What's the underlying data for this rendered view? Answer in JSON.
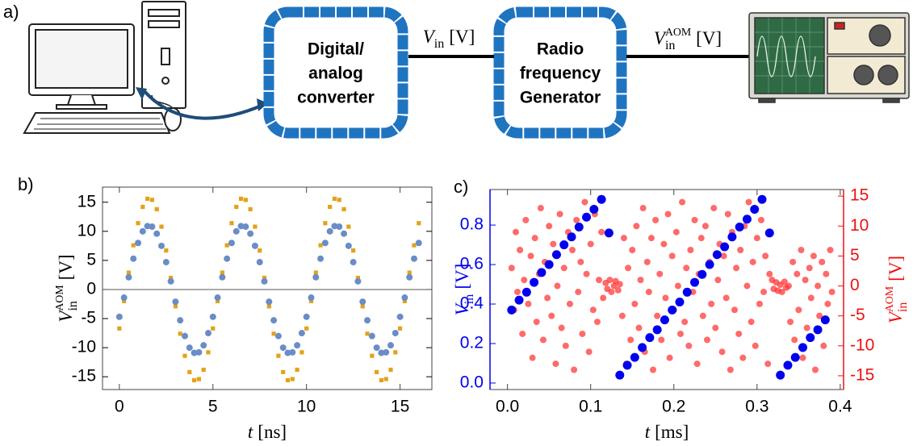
{
  "diagram": {
    "panel": "a)",
    "boxes": [
      [
        "Digital/",
        "analog",
        "converter"
      ],
      [
        "Radio",
        "frequency",
        "Generator"
      ]
    ],
    "arrow_labels": [
      {
        "symbol": "V",
        "sub": "in",
        "unit": "[V]"
      },
      {
        "symbol": "V",
        "sub": "in",
        "sup": "AOM",
        "unit": "[V]"
      }
    ]
  },
  "chart_data": [
    {
      "type": "scatter",
      "panel": "b)",
      "xlabel": {
        "symbol": "t",
        "unit": "[ns]"
      },
      "ylabel": {
        "symbol": "V",
        "sub": "in",
        "sup": "AOM",
        "unit": "[V]"
      },
      "xlim": [
        -0.9,
        16.7
      ],
      "xticks": [
        0,
        5,
        10,
        15
      ],
      "ylim": [
        -17.2,
        17.6
      ],
      "yticks": [
        -15,
        -10,
        -5,
        0,
        5,
        10,
        15
      ],
      "zero_line": true,
      "x": [
        0,
        0.25,
        0.5,
        0.75,
        1,
        1.25,
        1.5,
        1.75,
        2,
        2.25,
        2.5,
        2.75,
        3,
        3.25,
        3.5,
        3.75,
        4,
        4.25,
        4.5,
        4.75,
        5,
        5.25,
        5.5,
        5.75,
        6,
        6.25,
        6.5,
        6.75,
        7,
        7.25,
        7.5,
        7.75,
        8,
        8.25,
        8.5,
        8.75,
        9,
        9.25,
        9.5,
        9.75,
        10,
        10.25,
        10.5,
        10.75,
        11,
        11.25,
        11.5,
        11.75,
        12,
        12.25,
        12.5,
        12.75,
        13,
        13.25,
        13.5,
        13.75,
        14,
        14.25,
        14.5,
        14.75,
        15,
        15.25,
        15.5,
        15.75,
        16
      ],
      "series": [
        {
          "color": "#e3a21a",
          "marker": "square",
          "values": [
            -6.7,
            -2,
            2.9,
            7.6,
            11.4,
            14.2,
            15.6,
            15.4,
            13.8,
            10.8,
            6.7,
            2,
            -2.9,
            -7.6,
            -11.4,
            -14.2,
            -15.6,
            -15.4,
            -13.8,
            -10.8,
            -6.7,
            -2,
            2.9,
            7.6,
            11.4,
            14.2,
            15.6,
            15.4,
            13.8,
            10.8,
            6.7,
            2,
            -2.9,
            -7.6,
            -11.4,
            -14.2,
            -15.6,
            -15.4,
            -13.8,
            -10.8,
            -6.7,
            -2,
            2.9,
            7.6,
            11.4,
            14.2,
            15.6,
            15.4,
            13.8,
            10.8,
            6.7,
            2,
            -2.9,
            -7.6,
            -11.4,
            -14.2,
            -15.6,
            -15.4,
            -13.8,
            -10.8,
            -6.7,
            -2,
            2.9,
            7.6,
            11.4
          ]
        },
        {
          "color": "#6a8cc7",
          "marker": "circle",
          "values": [
            -4.7,
            -1.4,
            2.1,
            5.3,
            8,
            10,
            10.9,
            10.8,
            9.6,
            7.5,
            4.7,
            1.4,
            -2.1,
            -5.3,
            -8,
            -10,
            -10.9,
            -10.8,
            -9.6,
            -7.5,
            -4.7,
            -1.4,
            2.1,
            5.3,
            8,
            10,
            10.9,
            10.8,
            9.6,
            7.5,
            4.7,
            1.4,
            -2.1,
            -5.3,
            -8,
            -10,
            -10.9,
            -10.8,
            -9.6,
            -7.5,
            -4.7,
            -1.4,
            2.1,
            5.3,
            8,
            10,
            10.9,
            10.8,
            9.6,
            7.5,
            4.7,
            1.4,
            -2.1,
            -5.3,
            -8,
            -10,
            -10.9,
            -10.8,
            -9.6,
            -7.5,
            -4.7,
            -1.4,
            2.1,
            5.3,
            8
          ]
        }
      ]
    },
    {
      "type": "scatter",
      "panel": "c)",
      "xlabel": {
        "symbol": "t",
        "unit": "[ms]"
      },
      "ylabel": {
        "symbol": "V",
        "sub": "in",
        "unit": "[V]"
      },
      "y2label": {
        "symbol": "V",
        "sub": "in",
        "sup": "AOM",
        "unit": "[V]"
      },
      "axis_colors": {
        "y": "#0000ee",
        "y2": "#ee1111"
      },
      "xlim": [
        -0.021,
        0.404
      ],
      "xticks": [
        {
          "value": 0,
          "label": "0.0"
        },
        0.1,
        0.2,
        0.3,
        0.4
      ],
      "ylim": [
        -0.033,
        0.98
      ],
      "yticks": [
        {
          "value": 0,
          "label": "0.0"
        },
        0.2,
        0.4,
        0.6,
        0.8
      ],
      "y2lim": [
        -17.3,
        16.1
      ],
      "y2ticks": [
        -15,
        -10,
        -5,
        0,
        5,
        10,
        15
      ],
      "series": [
        {
          "color": "#ff3030",
          "marker": "circle",
          "axis": "y2",
          "opacity": 0.72,
          "x": [
            0.005,
            0.008,
            0.01,
            0.012,
            0.015,
            0.018,
            0.02,
            0.022,
            0.025,
            0.028,
            0.03,
            0.033,
            0.035,
            0.038,
            0.04,
            0.043,
            0.045,
            0.048,
            0.05,
            0.053,
            0.055,
            0.058,
            0.06,
            0.063,
            0.065,
            0.068,
            0.07,
            0.073,
            0.075,
            0.078,
            0.08,
            0.083,
            0.085,
            0.088,
            0.09,
            0.093,
            0.095,
            0.098,
            0.1,
            0.103,
            0.105,
            0.108,
            0.11,
            0.113,
            0.115,
            0.118,
            0.12,
            0.123,
            0.125,
            0.128,
            0.13,
            0.133,
            0.135,
            0.138,
            0.14,
            0.143,
            0.145,
            0.148,
            0.15,
            0.153,
            0.155,
            0.158,
            0.16,
            0.163,
            0.165,
            0.168,
            0.17,
            0.173,
            0.175,
            0.178,
            0.18,
            0.183,
            0.185,
            0.188,
            0.19,
            0.193,
            0.195,
            0.198,
            0.2,
            0.203,
            0.205,
            0.208,
            0.21,
            0.213,
            0.215,
            0.218,
            0.22,
            0.223,
            0.225,
            0.228,
            0.23,
            0.233,
            0.235,
            0.238,
            0.24,
            0.243,
            0.245,
            0.248,
            0.25,
            0.253,
            0.255,
            0.258,
            0.26,
            0.263,
            0.265,
            0.268,
            0.27,
            0.273,
            0.275,
            0.278,
            0.28,
            0.283,
            0.285,
            0.288,
            0.29,
            0.293,
            0.295,
            0.298,
            0.3,
            0.303,
            0.305,
            0.308,
            0.31,
            0.313,
            0.315,
            0.318,
            0.32,
            0.323,
            0.325,
            0.328,
            0.33,
            0.333,
            0.335,
            0.338,
            0.34,
            0.343,
            0.345,
            0.348,
            0.35,
            0.353,
            0.355,
            0.358,
            0.36,
            0.363,
            0.365,
            0.368,
            0.37,
            0.373,
            0.375,
            0.378,
            0.38,
            0.383,
            0.385,
            0.388,
            0.39
          ],
          "values": [
            3,
            -4,
            9,
            -1,
            6,
            -8,
            1,
            11,
            -3,
            5,
            -12,
            8,
            -6,
            2,
            13,
            -9,
            4,
            -2,
            10,
            -5,
            7,
            -13,
            0,
            12,
            -7,
            3,
            -10,
            9,
            -3,
            6,
            -14,
            11,
            -1,
            4,
            -8,
            14,
            2,
            -11,
            7,
            -4,
            12,
            -6,
            1,
            9,
            -2,
            0.5,
            -0.5,
            1,
            -1,
            0,
            0.8,
            -0.7,
            0.3,
            -5,
            8,
            -13,
            3,
            -9,
            6,
            -3,
            10,
            -7,
            1,
            13,
            -11,
            4,
            -1,
            8,
            -14,
            11,
            -5,
            2,
            -9,
            7,
            -2,
            12,
            -12,
            5,
            -4,
            9,
            0,
            -8,
            14,
            -6,
            3,
            -10,
            6,
            -1,
            11,
            -13,
            2,
            8,
            -5,
            10,
            -9,
            4,
            -3,
            13,
            -7,
            1,
            7,
            -11,
            5,
            -2,
            12,
            -14,
            9,
            -4,
            3,
            -8,
            6,
            -12,
            10,
            0,
            14,
            -6,
            4,
            -10,
            8,
            -3,
            11,
            -1,
            5,
            -13,
            2,
            1,
            -0.5,
            0.6,
            -0.8,
            0.2,
            -1,
            0.7,
            -0.3,
            0,
            -6,
            4,
            -9,
            2,
            -4,
            6,
            -12,
            1,
            -7,
            3,
            -2,
            5,
            -14,
            0,
            -5,
            4,
            -10,
            2,
            -3,
            6,
            -1
          ]
        },
        {
          "color": "#0000ee",
          "marker": "circle",
          "axis": "y",
          "size": 5.5,
          "x": [
            0.005,
            0.014,
            0.023,
            0.032,
            0.041,
            0.05,
            0.059,
            0.068,
            0.077,
            0.086,
            0.095,
            0.104,
            0.113,
            0.122,
            0.135,
            0.144,
            0.153,
            0.162,
            0.171,
            0.18,
            0.189,
            0.198,
            0.207,
            0.216,
            0.225,
            0.234,
            0.243,
            0.252,
            0.261,
            0.27,
            0.279,
            0.288,
            0.297,
            0.306,
            0.315,
            0.328,
            0.337,
            0.346,
            0.355,
            0.364,
            0.373,
            0.382
          ],
          "values": [
            0.37,
            0.42,
            0.46,
            0.51,
            0.56,
            0.6,
            0.65,
            0.7,
            0.74,
            0.79,
            0.84,
            0.88,
            0.93,
            0.76,
            0.04,
            0.09,
            0.13,
            0.18,
            0.23,
            0.27,
            0.32,
            0.37,
            0.41,
            0.46,
            0.51,
            0.55,
            0.6,
            0.65,
            0.69,
            0.74,
            0.79,
            0.83,
            0.88,
            0.93,
            0.76,
            0.04,
            0.09,
            0.13,
            0.18,
            0.23,
            0.27,
            0.32
          ]
        }
      ]
    }
  ]
}
